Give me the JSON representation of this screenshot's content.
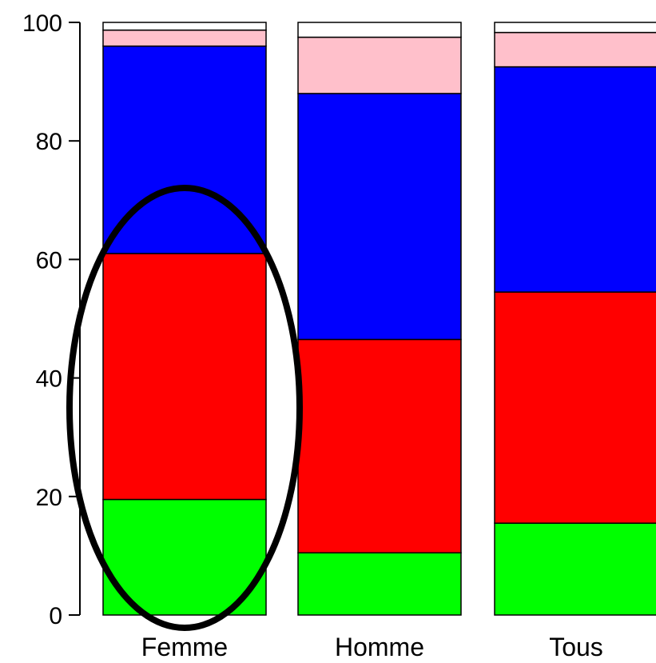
{
  "chart_data": {
    "type": "bar",
    "stacked": true,
    "categories": [
      "Femme",
      "Homme",
      "Tous"
    ],
    "ylim": [
      0,
      100
    ],
    "yticks": [
      "0",
      "20",
      "40",
      "60",
      "80",
      "100"
    ],
    "series": [
      {
        "color": "#00ff00",
        "values": [
          19.5,
          10.5,
          15.5
        ]
      },
      {
        "color": "#ff0000",
        "values": [
          41.5,
          36.0,
          39.0
        ]
      },
      {
        "color": "#0000ff",
        "values": [
          35.0,
          41.5,
          38.0
        ]
      },
      {
        "color": "#ffc0cb",
        "values": [
          2.7,
          9.5,
          5.8
        ]
      },
      {
        "color": "#ffffff",
        "values": [
          1.3,
          2.5,
          1.7
        ]
      }
    ],
    "highlight": {
      "category": "Femme",
      "shape": "ellipse",
      "color": "#000000"
    },
    "grid": false,
    "title": "",
    "xlabel": "",
    "ylabel": ""
  }
}
